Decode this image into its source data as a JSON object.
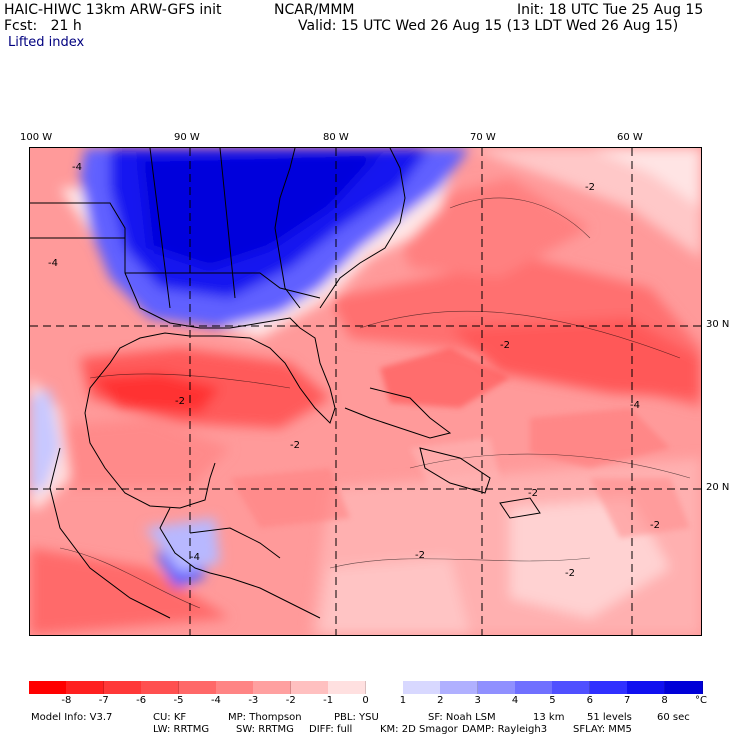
{
  "header": {
    "model": "HAIC-HIWC 13km ARW-GFS init",
    "org": "NCAR/MMM",
    "init": "Init: 18 UTC Tue 25 Aug 15",
    "fcst": "Fcst:   21 h",
    "valid": "Valid: 15 UTC Wed 26 Aug 15 (13 LDT Wed 26 Aug 15)",
    "field": "Lifted index"
  },
  "axes": {
    "lon_labels": [
      "100 W",
      "90 W",
      "80 W",
      "70 W",
      "60 W"
    ],
    "lat_labels": [
      "30 N",
      "20 N"
    ]
  },
  "map": {
    "contour_labels": [
      "-4",
      "-4",
      "-2",
      "-2",
      "-2",
      "-2",
      "-2",
      "-4",
      "-2",
      "-2",
      "-4",
      "-2"
    ]
  },
  "colorbar": {
    "labels": [
      "-8",
      "-7",
      "-6",
      "-5",
      "-4",
      "-3",
      "-2",
      "-1",
      "0",
      "1",
      "2",
      "3",
      "4",
      "5",
      "6",
      "7",
      "8"
    ],
    "unit": "°C",
    "colors": [
      "#ff0000",
      "#ff2020",
      "#ff3838",
      "#ff5050",
      "#ff6868",
      "#ff8484",
      "#ffa0a0",
      "#ffc0c0",
      "#ffe0e0",
      "#ffffff",
      "#d8d8ff",
      "#b0b0ff",
      "#9090ff",
      "#7070ff",
      "#5050ff",
      "#3030ff",
      "#1010f0",
      "#0000d8"
    ]
  },
  "model_info": {
    "line1": [
      "Model Info: V3.7",
      "CU: KF",
      "MP: Thompson",
      "PBL: YSU",
      "SF: Noah LSM",
      "13 km",
      "51 levels",
      "60 sec"
    ],
    "line2": [
      "LW: RRTMG",
      "SW: RRTMG",
      "DIFF: full",
      "KM: 2D Smagor",
      "DAMP: Rayleigh3",
      "SFLAY: MM5"
    ]
  }
}
